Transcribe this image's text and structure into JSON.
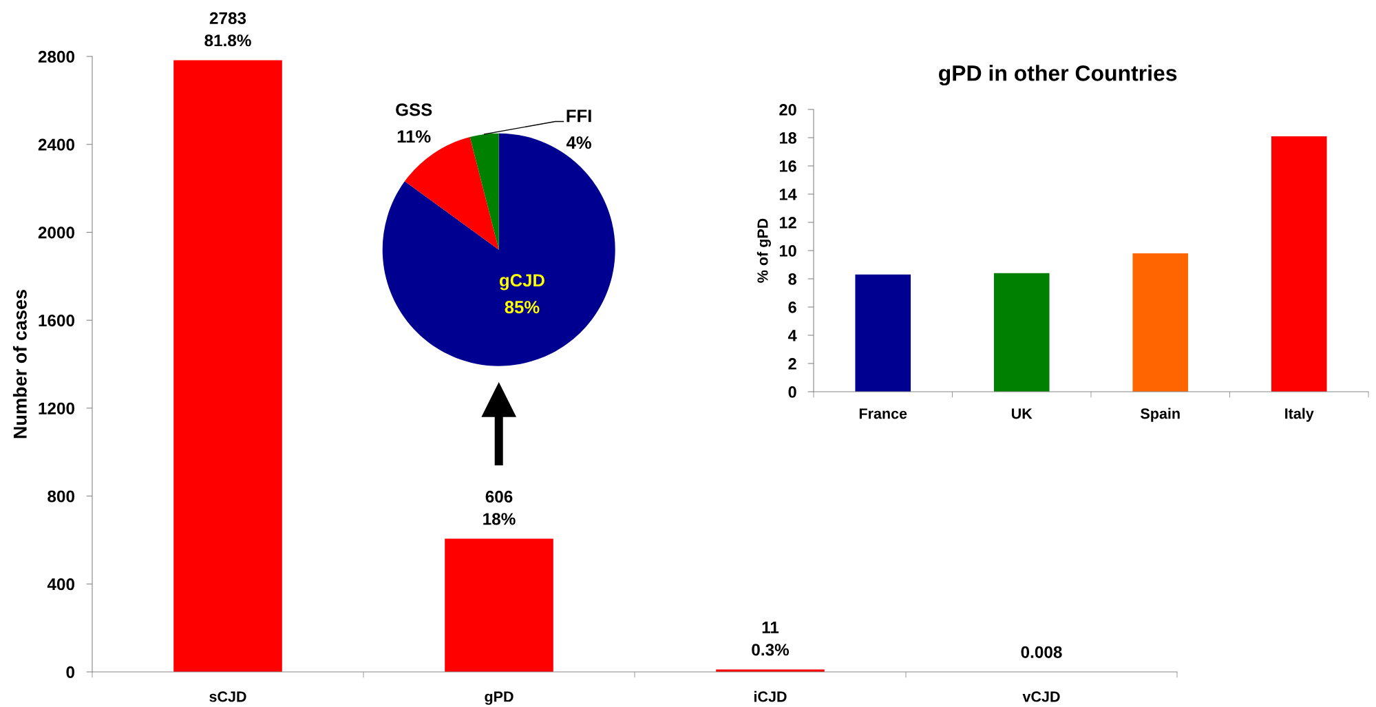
{
  "chart_data": [
    {
      "type": "bar",
      "categories": [
        "sCJD",
        "gPD",
        "iCJD",
        "vCJD"
      ],
      "values": [
        2783,
        606,
        11,
        0.008
      ],
      "color": "#ff0000",
      "ylabel": "Number of cases",
      "ylim": [
        0,
        2800
      ],
      "yticks": [
        0,
        400,
        800,
        1200,
        1600,
        2000,
        2400,
        2800
      ],
      "value_labels": [
        "2783\n81.8%",
        "606\n18%",
        "11\n0.3%",
        "0.008"
      ]
    },
    {
      "type": "pie",
      "categories": [
        "gCJD",
        "GSS",
        "FFI"
      ],
      "values": [
        85,
        11,
        4
      ],
      "colors": [
        "#000090",
        "#ff0000",
        "#008000"
      ],
      "value_labels": [
        "85%",
        "11%",
        "4%"
      ]
    },
    {
      "type": "bar",
      "title": "gPD in other Countries",
      "categories": [
        "France",
        "UK",
        "Spain",
        "Italy"
      ],
      "values": [
        8.3,
        8.4,
        9.8,
        18.1
      ],
      "colors": [
        "#000090",
        "#008000",
        "#ff6600",
        "#ff0000"
      ],
      "ylabel": "% of gPD",
      "ylim": [
        0,
        20
      ],
      "yticks": [
        0,
        2,
        4,
        6,
        8,
        10,
        12,
        14,
        16,
        18,
        20
      ]
    }
  ]
}
